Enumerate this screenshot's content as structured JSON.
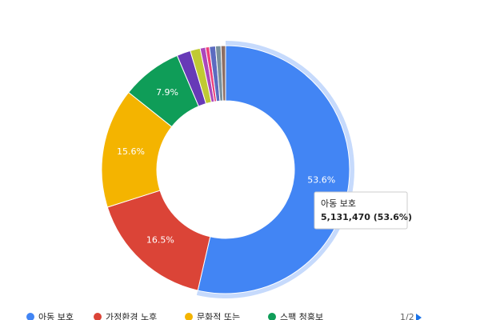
{
  "chart_data": {
    "type": "pie",
    "donut": true,
    "categories": [
      "아동 보호",
      "가정환경 노후",
      "문화적 또는",
      "스팩 청홍보",
      null,
      null,
      null,
      null,
      null,
      null,
      null
    ],
    "values": [
      53.6,
      16.5,
      15.6,
      7.9,
      1.8,
      1.3,
      0.7,
      0.5,
      0.8,
      0.7,
      0.6
    ],
    "value_labels": [
      "53.6%",
      "16.5%",
      "15.6%",
      "7.9%",
      null,
      null,
      null,
      null,
      null,
      null,
      null
    ],
    "colors": [
      "#4285f4",
      "#db4437",
      "#f4b400",
      "#0f9d58",
      "#673ab7",
      "#c0ca33",
      "#ab47bc",
      "#ec407a",
      "#5c6bc0",
      "#78909c",
      "#8d6e63"
    ],
    "highlight": 0,
    "tooltip": {
      "title": "아동 보호",
      "value": "5,131,470 (53.6%)"
    },
    "legend_page": "1/2"
  }
}
